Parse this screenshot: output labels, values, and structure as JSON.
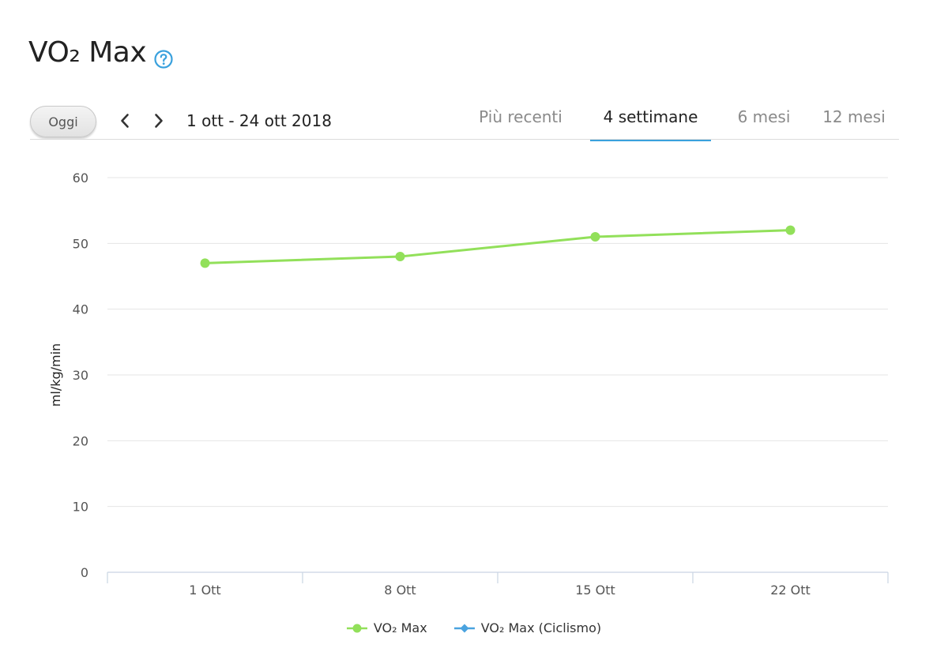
{
  "header": {
    "title": "VO₂ Max"
  },
  "toolbar": {
    "today_label": "Oggi",
    "date_range": "1 ott - 24 ott 2018"
  },
  "tabs": [
    {
      "label": "Più recenti",
      "active": false
    },
    {
      "label": "4 settimane",
      "active": true
    },
    {
      "label": "6 mesi",
      "active": false
    },
    {
      "label": "12 mesi",
      "active": false
    }
  ],
  "colors": {
    "accent": "#3aa1dd",
    "series_vo2": "#92e05a",
    "series_cycling": "#4aa3df",
    "grid": "#e4e4e4",
    "axis": "#c9d4e3"
  },
  "icons": {
    "help": "question-circle-icon",
    "prev": "chevron-left-icon",
    "next": "chevron-right-icon"
  },
  "chart_data": {
    "type": "line",
    "title": "",
    "xlabel": "",
    "ylabel": "ml/kg/min",
    "ylim": [
      0,
      60
    ],
    "yticks": [
      0,
      10,
      20,
      30,
      40,
      50,
      60
    ],
    "categories": [
      "1 Ott",
      "8 Ott",
      "15 Ott",
      "22 Ott"
    ],
    "grid": true,
    "legend_position": "bottom",
    "series": [
      {
        "name": "VO₂ Max",
        "values": [
          47,
          48,
          51,
          52
        ],
        "marker": "circle"
      },
      {
        "name": "VO₂ Max (Ciclismo)",
        "values": [
          null,
          null,
          null,
          null
        ],
        "marker": "diamond"
      }
    ]
  }
}
